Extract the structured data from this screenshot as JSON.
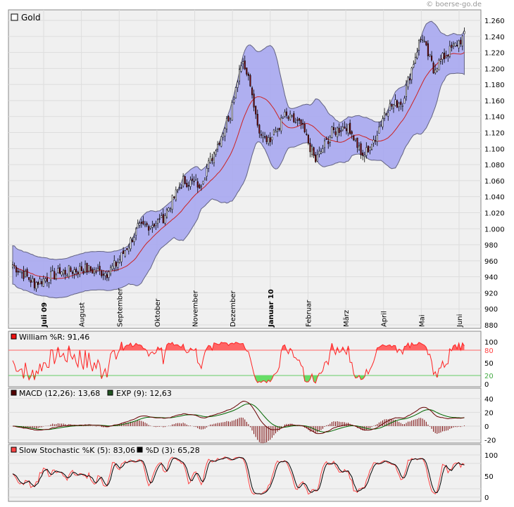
{
  "watermark": "© boerse-go.de",
  "chart_data": [
    {
      "type": "candlestick",
      "title": "Gold",
      "ylim": [
        880,
        1260
      ],
      "y_ticks": [
        "880",
        "900",
        "920",
        "940",
        "960",
        "980",
        "1.000",
        "1.020",
        "1.040",
        "1.060",
        "1.080",
        "1.100",
        "1.120",
        "1.140",
        "1.160",
        "1.180",
        "1.200",
        "1.220",
        "1.240",
        "1.260"
      ],
      "x_labels": [
        "Juli 09",
        "August",
        "September",
        "Oktober",
        "November",
        "Dezember",
        "Januar 10",
        "Februar",
        "März",
        "April",
        "Mai",
        "Juni"
      ],
      "x_label_bold": [
        true,
        false,
        false,
        false,
        false,
        false,
        true,
        false,
        false,
        false,
        false,
        false
      ],
      "x_label_month_index": [
        0,
        1,
        2,
        3,
        4,
        5,
        6,
        7,
        8,
        9,
        10,
        11
      ],
      "month_close": [
        926,
        950,
        995,
        1040,
        1180,
        1095,
        1080,
        1118,
        1113,
        1180,
        1215,
        1240
      ],
      "bollinger": {
        "period": 20,
        "color": "#9999ee"
      },
      "moving_average_color": "#cc2222",
      "colors": {
        "up": "#ffffff",
        "down": "#7a0a0a",
        "band": "#a8a8f0"
      }
    },
    {
      "type": "line",
      "title": "William %R: 91,46",
      "legend": [
        "William %R: 91,46"
      ],
      "ylim": [
        0,
        100
      ],
      "y_ticks": [
        "0",
        "20",
        "50",
        "80",
        "100"
      ],
      "levels": [
        20,
        80
      ],
      "colors": {
        "line": "#ff2222",
        "upper_fill": "#ff6666",
        "lower_fill": "#66dd66",
        "legend_box": "#ee1111"
      }
    },
    {
      "type": "line",
      "title": "MACD (12,26): 13,68",
      "legend": [
        "MACD (12,26): 13,68",
        "EXP (9): 12,63"
      ],
      "ylim": [
        -25,
        45
      ],
      "y_ticks": [
        "-20",
        "0",
        "20",
        "40"
      ],
      "colors": {
        "macd": "#660000",
        "signal": "#006600",
        "hist": "#7a0a0a"
      }
    },
    {
      "type": "line",
      "title": "Slow Stochastic %K (5): 83,06",
      "legend": [
        "Slow Stochastic %K (5): 83,06",
        "%D (3): 65,28"
      ],
      "ylim": [
        0,
        100
      ],
      "y_ticks": [
        "0",
        "50",
        "100"
      ],
      "colors": {
        "k": "#ff4444",
        "d": "#000000"
      }
    }
  ]
}
